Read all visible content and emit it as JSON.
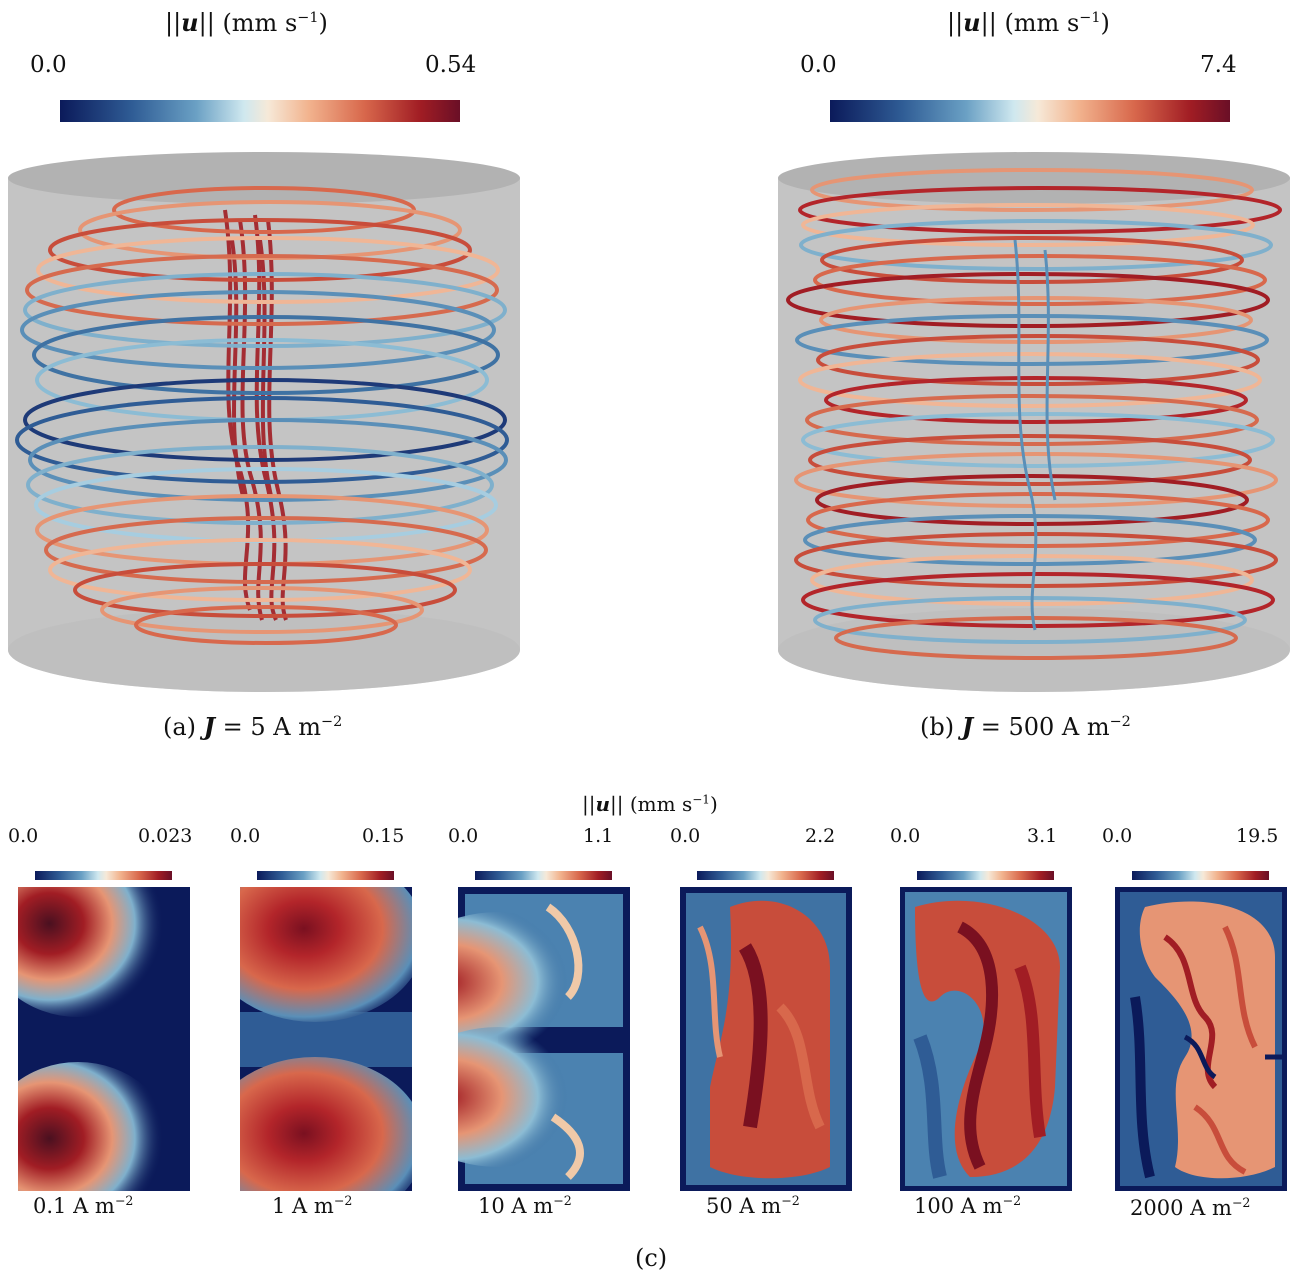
{
  "colorbar_label": "||u|| (mm s⁻¹)",
  "colorbar_label_parts": {
    "norm_left": "||",
    "u": "u",
    "norm_right": "||",
    "unit": "(mm s",
    "exp": "−1",
    "close": ")"
  },
  "panel_a": {
    "cb_min": "0.0",
    "cb_max": "0.54",
    "caption_prefix": "(a) ",
    "caption_var": "J",
    "caption_rest": " = 5 A m",
    "caption_exp": "−2"
  },
  "panel_b": {
    "cb_min": "0.0",
    "cb_max": "7.4",
    "caption_prefix": "(b) ",
    "caption_var": "J",
    "caption_rest": " = 500 A m",
    "caption_exp": "−2"
  },
  "panel_c": {
    "caption": "(c)",
    "cb_title_unit": "(mm s",
    "cb_title_exp": "−1",
    "cb_title_close": ")",
    "slices": [
      {
        "cb_min": "0.0",
        "cb_max": "0.023",
        "label": "0.1 A m",
        "exp": "−2"
      },
      {
        "cb_min": "0.0",
        "cb_max": "0.15",
        "label": "1 A m",
        "exp": "−2"
      },
      {
        "cb_min": "0.0",
        "cb_max": "1.1",
        "label": "10 A m",
        "exp": "−2"
      },
      {
        "cb_min": "0.0",
        "cb_max": "2.2",
        "label": "50 A m",
        "exp": "−2"
      },
      {
        "cb_min": "0.0",
        "cb_max": "3.1",
        "label": "100 A m",
        "exp": "−2"
      },
      {
        "cb_min": "0.0",
        "cb_max": "19.5",
        "label": "2000 A m",
        "exp": "−2"
      }
    ]
  },
  "colors": {
    "deep_blue": "#0b1a5a",
    "mid_blue": "#4b82b0",
    "light": "#e9eef0",
    "salmon": "#e69574",
    "red": "#b3252a",
    "dark_red": "#7a1020",
    "cylinder": "#c9c9c9"
  }
}
